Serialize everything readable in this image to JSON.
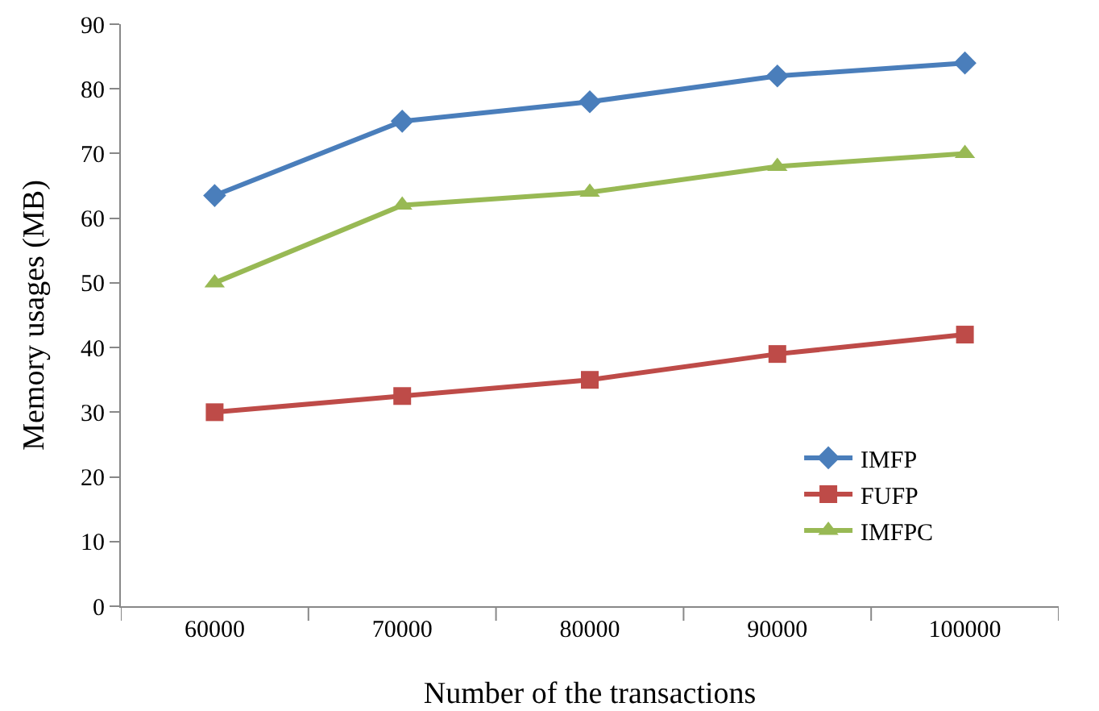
{
  "chart_data": {
    "type": "line",
    "xlabel": "Number of the transactions",
    "ylabel": "Memory usages (MB)",
    "categories": [
      "60000",
      "70000",
      "80000",
      "90000",
      "100000"
    ],
    "series": [
      {
        "name": "IMFP",
        "color": "#4a7ebb",
        "marker": "diamond",
        "values": [
          63.5,
          75,
          78,
          82,
          84
        ]
      },
      {
        "name": "FUFP",
        "color": "#be4b48",
        "marker": "square",
        "values": [
          30,
          32.5,
          35,
          39,
          42
        ]
      },
      {
        "name": "IMFPC",
        "color": "#98b954",
        "marker": "triangle",
        "values": [
          50,
          62,
          64,
          68,
          70
        ]
      }
    ],
    "ylim": [
      0,
      90
    ],
    "yticks": [
      0,
      10,
      20,
      30,
      40,
      50,
      60,
      70,
      80,
      90
    ],
    "grid": false,
    "legend": "bottom right",
    "line_style": "solid"
  }
}
